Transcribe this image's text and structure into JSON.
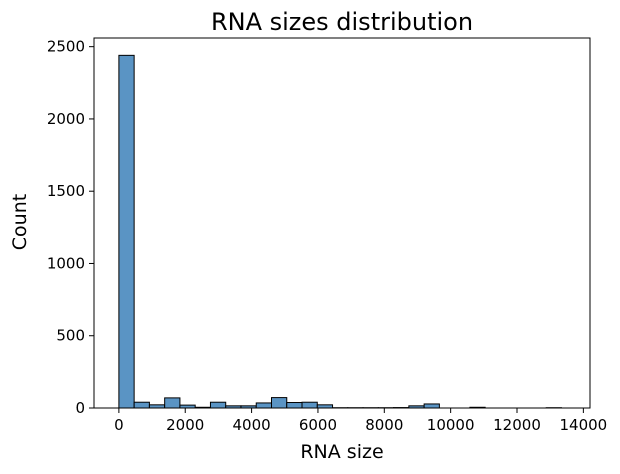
{
  "chart_data": {
    "type": "bar",
    "title": "RNA sizes distribution",
    "xlabel": "RNA size",
    "ylabel": "Count",
    "bar_color": "#5a94c4",
    "xlim": [
      -750,
      14200
    ],
    "ylim": [
      0,
      2560
    ],
    "xticks": [
      0,
      2000,
      4000,
      6000,
      8000,
      10000,
      12000,
      14000
    ],
    "yticks": [
      0,
      500,
      1000,
      1500,
      2000,
      2500
    ],
    "bin_width": 460,
    "bin_starts": [
      0,
      460,
      920,
      1380,
      1840,
      2300,
      2760,
      3220,
      3680,
      4140,
      4600,
      5060,
      5520,
      5980,
      6440,
      6900,
      7360,
      7820,
      8280,
      8740,
      9200,
      9660,
      10120,
      10580,
      11040,
      11500,
      11960,
      12420,
      12880
    ],
    "values": [
      2440,
      40,
      22,
      70,
      20,
      5,
      40,
      15,
      15,
      35,
      72,
      38,
      40,
      22,
      2,
      2,
      2,
      2,
      3,
      15,
      28,
      0,
      0,
      5,
      0,
      0,
      0,
      0,
      2
    ]
  }
}
